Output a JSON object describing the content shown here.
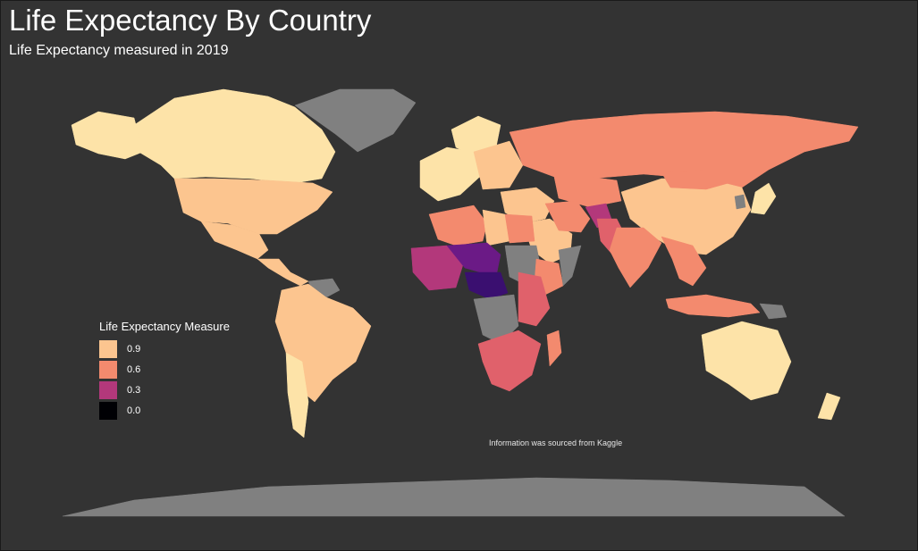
{
  "title": "Life Expectancy By Country",
  "subtitle": "Life Expectancy measured in 2019",
  "caption": "Information was sourced from Kaggle",
  "legend": {
    "title": "Life Expectancy Measure",
    "items": [
      {
        "label": "0.9",
        "color": "#fcc58f"
      },
      {
        "label": "0.6",
        "color": "#f38a6e"
      },
      {
        "label": "0.3",
        "color": "#b3387b"
      },
      {
        "label": "0.0",
        "color": "#000004"
      }
    ]
  },
  "colors": {
    "background": "#333333",
    "no_data": "#808080",
    "very_high": "#fde3a8",
    "high": "#fcc58f",
    "mid": "#f38a6e",
    "low_mid": "#e0616b",
    "low": "#b3387b",
    "very_low": "#6b1a86",
    "lowest": "#3a0f70"
  },
  "map_data": {
    "type": "choropleth",
    "scale_domain": [
      0.0,
      0.9
    ],
    "regions": [
      {
        "name": "Canada",
        "level": "very_high"
      },
      {
        "name": "Alaska",
        "level": "very_high"
      },
      {
        "name": "United States",
        "level": "high"
      },
      {
        "name": "Mexico",
        "level": "high"
      },
      {
        "name": "Central America",
        "level": "high"
      },
      {
        "name": "Greenland",
        "level": "no_data"
      },
      {
        "name": "Venezuela",
        "level": "no_data"
      },
      {
        "name": "South America",
        "level": "high"
      },
      {
        "name": "Chile",
        "level": "very_high"
      },
      {
        "name": "Western Europe",
        "level": "very_high"
      },
      {
        "name": "Scandinavia",
        "level": "very_high"
      },
      {
        "name": "Eastern Europe",
        "level": "high"
      },
      {
        "name": "Russia",
        "level": "mid"
      },
      {
        "name": "Kazakhstan",
        "level": "mid"
      },
      {
        "name": "China",
        "level": "high"
      },
      {
        "name": "Mongolia",
        "level": "mid"
      },
      {
        "name": "Japan",
        "level": "very_high"
      },
      {
        "name": "North Korea",
        "level": "no_data"
      },
      {
        "name": "Middle East",
        "level": "high"
      },
      {
        "name": "Saudi Arabia",
        "level": "high"
      },
      {
        "name": "Iran",
        "level": "mid"
      },
      {
        "name": "Afghanistan",
        "level": "low"
      },
      {
        "name": "Pakistan",
        "level": "low_mid"
      },
      {
        "name": "India",
        "level": "mid"
      },
      {
        "name": "Southeast Asia",
        "level": "mid"
      },
      {
        "name": "Indonesia",
        "level": "mid"
      },
      {
        "name": "Papua New Guinea",
        "level": "no_data"
      },
      {
        "name": "Australia",
        "level": "very_high"
      },
      {
        "name": "New Zealand",
        "level": "very_high"
      },
      {
        "name": "North Africa",
        "level": "mid"
      },
      {
        "name": "Libya",
        "level": "high"
      },
      {
        "name": "Egypt",
        "level": "mid"
      },
      {
        "name": "Sudan",
        "level": "no_data"
      },
      {
        "name": "Ethiopia",
        "level": "mid"
      },
      {
        "name": "Somalia",
        "level": "no_data"
      },
      {
        "name": "West Africa",
        "level": "low"
      },
      {
        "name": "Sahel",
        "level": "very_low"
      },
      {
        "name": "Central African Republic",
        "level": "lowest"
      },
      {
        "name": "Congo DR",
        "level": "no_data"
      },
      {
        "name": "East Africa",
        "level": "low_mid"
      },
      {
        "name": "Southern Africa",
        "level": "low_mid"
      },
      {
        "name": "Madagascar",
        "level": "mid"
      },
      {
        "name": "Antarctica",
        "level": "no_data"
      }
    ]
  }
}
